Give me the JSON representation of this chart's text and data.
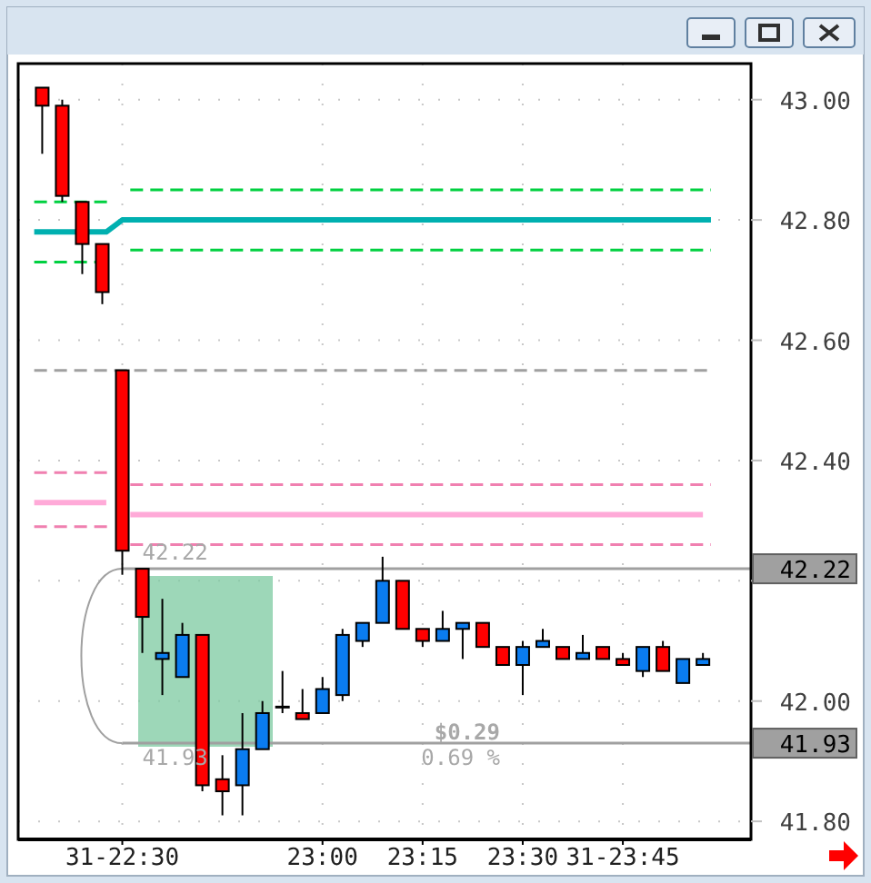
{
  "chart_data": {
    "type": "candlestick",
    "x": [
      22.3,
      22.35,
      22.4,
      22.45,
      22.5,
      22.55,
      22.6,
      22.65,
      22.7,
      22.75,
      22.8,
      22.85,
      22.9,
      22.95,
      23.0,
      23.05,
      23.1,
      23.15,
      23.2,
      23.25,
      23.3,
      23.35,
      23.4,
      23.45,
      23.5,
      23.55,
      23.6,
      23.65,
      23.7,
      23.75,
      23.8,
      23.85,
      23.9,
      23.95
    ],
    "ohlc": [
      [
        43.02,
        43.02,
        42.91,
        42.99
      ],
      [
        42.99,
        43.0,
        42.83,
        42.84
      ],
      [
        42.83,
        42.83,
        42.71,
        42.76
      ],
      [
        42.76,
        42.76,
        42.66,
        42.68
      ],
      [
        42.55,
        42.55,
        42.21,
        42.25
      ],
      [
        42.22,
        42.22,
        42.08,
        42.14
      ],
      [
        42.07,
        42.17,
        42.01,
        42.08
      ],
      [
        42.04,
        42.13,
        42.04,
        42.11
      ],
      [
        42.11,
        42.11,
        41.85,
        41.86
      ],
      [
        41.87,
        41.91,
        41.81,
        41.85
      ],
      [
        41.86,
        41.98,
        41.81,
        41.92
      ],
      [
        41.92,
        42.0,
        41.92,
        41.98
      ],
      [
        41.99,
        42.05,
        41.98,
        41.99
      ],
      [
        41.98,
        42.02,
        41.97,
        41.97
      ],
      [
        41.98,
        42.04,
        41.98,
        42.02
      ],
      [
        42.01,
        42.12,
        42.0,
        42.11
      ],
      [
        42.1,
        42.13,
        42.09,
        42.13
      ],
      [
        42.13,
        42.24,
        42.13,
        42.2
      ],
      [
        42.2,
        42.2,
        42.12,
        42.12
      ],
      [
        42.12,
        42.12,
        42.09,
        42.1
      ],
      [
        42.1,
        42.15,
        42.1,
        42.12
      ],
      [
        42.12,
        42.13,
        42.07,
        42.13
      ],
      [
        42.13,
        42.13,
        42.09,
        42.09
      ],
      [
        42.09,
        42.09,
        42.06,
        42.06
      ],
      [
        42.06,
        42.1,
        42.01,
        42.09
      ],
      [
        42.09,
        42.12,
        42.09,
        42.1
      ],
      [
        42.09,
        42.09,
        42.07,
        42.07
      ],
      [
        42.07,
        42.11,
        42.07,
        42.08
      ],
      [
        42.09,
        42.09,
        42.07,
        42.07
      ],
      [
        42.07,
        42.08,
        42.06,
        42.06
      ],
      [
        42.05,
        42.09,
        42.04,
        42.09
      ],
      [
        42.09,
        42.1,
        42.05,
        42.05
      ],
      [
        42.03,
        42.07,
        42.03,
        42.07
      ],
      [
        42.06,
        42.08,
        42.06,
        42.07
      ]
    ],
    "colors": [
      "#ff0000",
      "#ff0000",
      "#ff0000",
      "#ff0000",
      "#ff0000",
      "#ff0000",
      "#0a7cf0",
      "#0a7cf0",
      "#ff0000",
      "#ff0000",
      "#0a7cf0",
      "#0a7cf0",
      "#000000",
      "#ff0000",
      "#0a7cf0",
      "#0a7cf0",
      "#0a7cf0",
      "#0a7cf0",
      "#ff0000",
      "#ff0000",
      "#0a7cf0",
      "#0a7cf0",
      "#ff0000",
      "#ff0000",
      "#0a7cf0",
      "#0a7cf0",
      "#ff0000",
      "#0a7cf0",
      "#ff0000",
      "#ff0000",
      "#0a7cf0",
      "#ff0000",
      "#0a7cf0",
      "#0a7cf0"
    ],
    "series": [
      {
        "type": "line",
        "color": "#00d040",
        "line_style": "dashed",
        "x": [
          22.28,
          22.47,
          22.48,
          22.52,
          23.97
        ],
        "values": [
          42.83,
          42.83,
          null,
          42.85,
          42.85
        ]
      },
      {
        "type": "line",
        "color": "#00b0b0",
        "line_style": "solid",
        "x": [
          22.28,
          22.46,
          22.5,
          23.97
        ],
        "values": [
          42.78,
          42.78,
          42.8,
          42.8
        ]
      },
      {
        "type": "line",
        "color": "#00d040",
        "line_style": "dashed",
        "x": [
          22.28,
          22.47,
          22.48,
          22.52,
          23.97
        ],
        "values": [
          42.73,
          42.73,
          null,
          42.75,
          42.75
        ]
      },
      {
        "type": "line",
        "color": "#a0a0a0",
        "line_style": "dashed",
        "x": [
          22.28,
          23.97
        ],
        "values": [
          42.55,
          42.55
        ]
      },
      {
        "type": "line",
        "color": "#f080b0",
        "line_style": "dashed",
        "x": [
          22.28,
          22.47,
          22.48,
          22.52,
          23.97
        ],
        "values": [
          42.38,
          42.38,
          null,
          42.36,
          42.36
        ]
      },
      {
        "type": "line",
        "color": "#ffaad8",
        "line_style": "solid",
        "x": [
          22.28,
          22.46,
          22.48,
          22.52,
          23.95
        ],
        "values": [
          42.33,
          42.33,
          null,
          42.31,
          42.31
        ]
      },
      {
        "type": "line",
        "color": "#f080b0",
        "line_style": "dashed",
        "x": [
          22.28,
          22.47,
          22.48,
          22.52,
          23.97
        ],
        "values": [
          42.29,
          42.29,
          null,
          42.26,
          42.26
        ]
      }
    ],
    "ref_lines": [
      {
        "axis": "y",
        "value": 42.22,
        "label": "42.22",
        "color": "#a0a0a0"
      },
      {
        "axis": "y",
        "value": 41.93,
        "label": "41.93",
        "color": "#a0a0a0"
      }
    ],
    "annotations": [
      {
        "text": "42.22",
        "x": 22.55,
        "y": 42.22
      },
      {
        "text": "41.93",
        "x": 22.55,
        "y": 41.93
      },
      "$0.29",
      "0.69 %"
    ],
    "xlim": [
      22.24,
      24.07
    ],
    "ylim": [
      41.77,
      43.06
    ],
    "xticks": [
      {
        "value": 22.5,
        "label": "31-22:30"
      },
      {
        "value": 23,
        "label": "23:00"
      },
      {
        "value": 23.25,
        "label": "23:15"
      },
      {
        "value": 23.5,
        "label": "23:30"
      },
      {
        "value": 23.75,
        "label": "31-23:45"
      }
    ],
    "yticks": [
      {
        "value": 41.8,
        "label": "41.80"
      },
      {
        "value": 42,
        "label": "42.00"
      },
      {
        "value": 42.2,
        "label": null
      },
      {
        "value": 42.4,
        "label": "42.40"
      },
      {
        "value": 42.6,
        "label": "42.60"
      },
      {
        "value": 42.8,
        "label": "42.80"
      },
      {
        "value": 43,
        "label": "43.00"
      }
    ],
    "grid": true
  }
}
